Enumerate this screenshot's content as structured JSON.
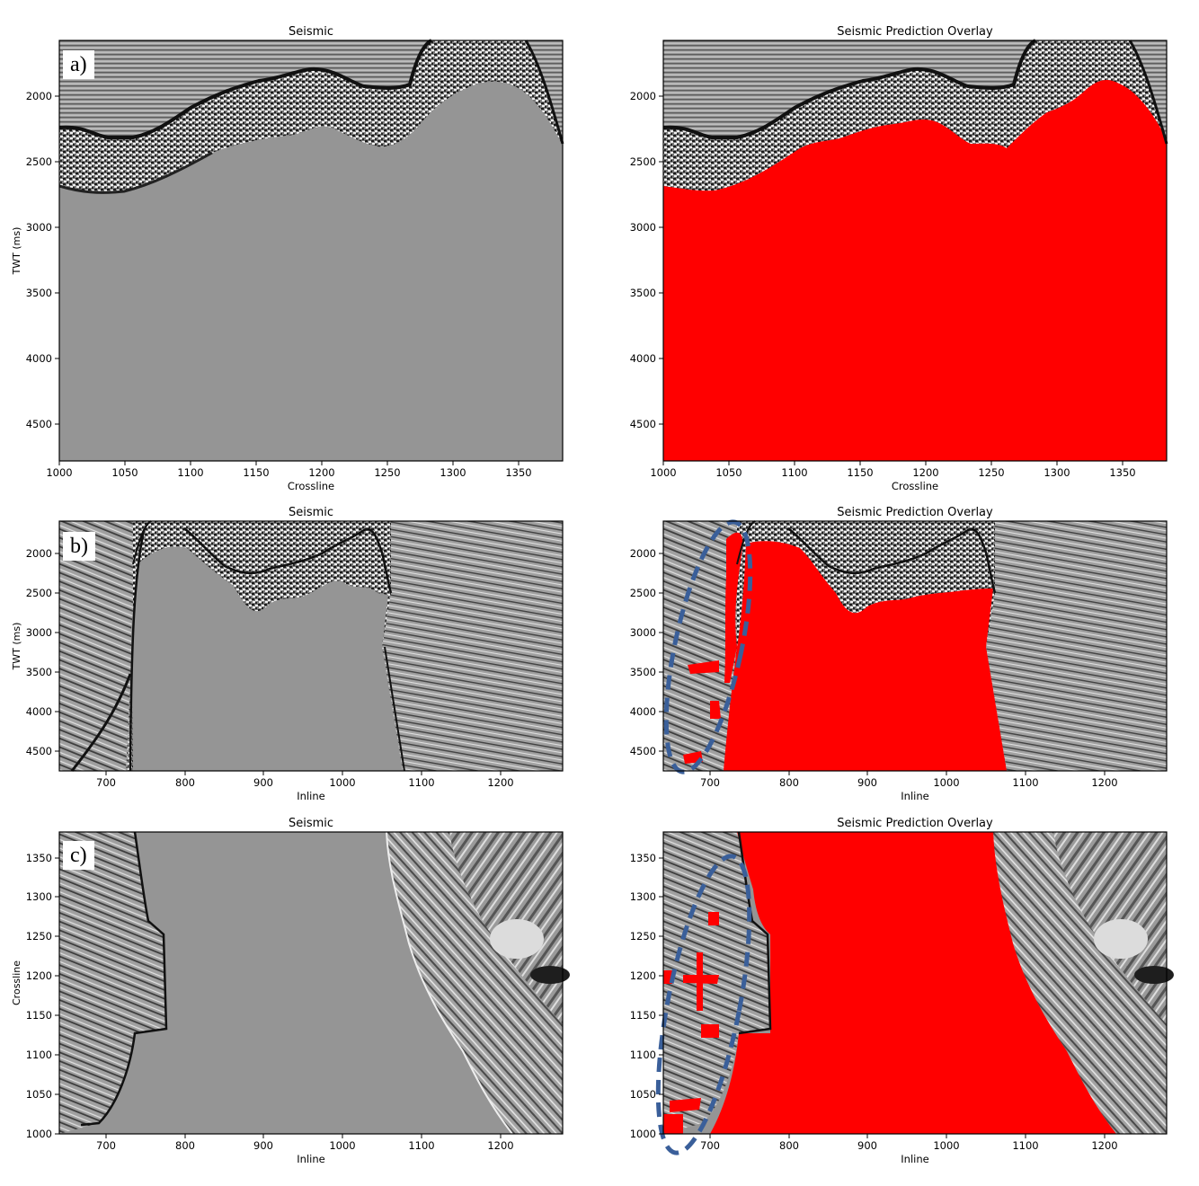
{
  "figure": {
    "rows": [
      {
        "letter": "a)",
        "left": {
          "title": "Seismic",
          "xlabel": "Crossline",
          "ylabel": "TWT (ms)",
          "xticks": [
            "1000",
            "1050",
            "1100",
            "1150",
            "1200",
            "1250",
            "1300",
            "1350"
          ],
          "yticks": [
            "2000",
            "2500",
            "3000",
            "3500",
            "4000",
            "4500"
          ]
        },
        "right": {
          "title": "Seismic Prediction Overlay",
          "xlabel": "Crossline",
          "xticks": [
            "1000",
            "1050",
            "1100",
            "1150",
            "1200",
            "1250",
            "1300",
            "1350"
          ],
          "yticks": [
            "2000",
            "2500",
            "3000",
            "3500",
            "4000",
            "4500"
          ]
        }
      },
      {
        "letter": "b)",
        "left": {
          "title": "Seismic",
          "xlabel": "Inline",
          "ylabel": "TWT (ms)",
          "xticks": [
            "700",
            "800",
            "900",
            "1000",
            "1100",
            "1200"
          ],
          "yticks": [
            "2000",
            "2500",
            "3000",
            "3500",
            "4000",
            "4500"
          ]
        },
        "right": {
          "title": "Seismic Prediction Overlay",
          "xlabel": "Inline",
          "xticks": [
            "700",
            "800",
            "900",
            "1000",
            "1100",
            "1200"
          ],
          "yticks": [
            "2000",
            "2500",
            "3000",
            "3500",
            "4000",
            "4500"
          ]
        }
      },
      {
        "letter": "c)",
        "left": {
          "title": "Seismic",
          "xlabel": "Inline",
          "ylabel": "Crossline",
          "xticks": [
            "700",
            "800",
            "900",
            "1000",
            "1100",
            "1200"
          ],
          "yticks": [
            "1000",
            "1050",
            "1100",
            "1150",
            "1200",
            "1250",
            "1300",
            "1350"
          ]
        },
        "right": {
          "title": "Seismic Prediction Overlay",
          "xlabel": "Inline",
          "xticks": [
            "700",
            "800",
            "900",
            "1000",
            "1100",
            "1200"
          ],
          "yticks": [
            "1000",
            "1050",
            "1100",
            "1150",
            "1200",
            "1250",
            "1300",
            "1350"
          ]
        }
      }
    ],
    "colors": {
      "background_gray": "#959595",
      "prediction_red": "#ff0000",
      "annotation_blue": "#3a5f9a",
      "reflector_black": "#111111"
    }
  }
}
